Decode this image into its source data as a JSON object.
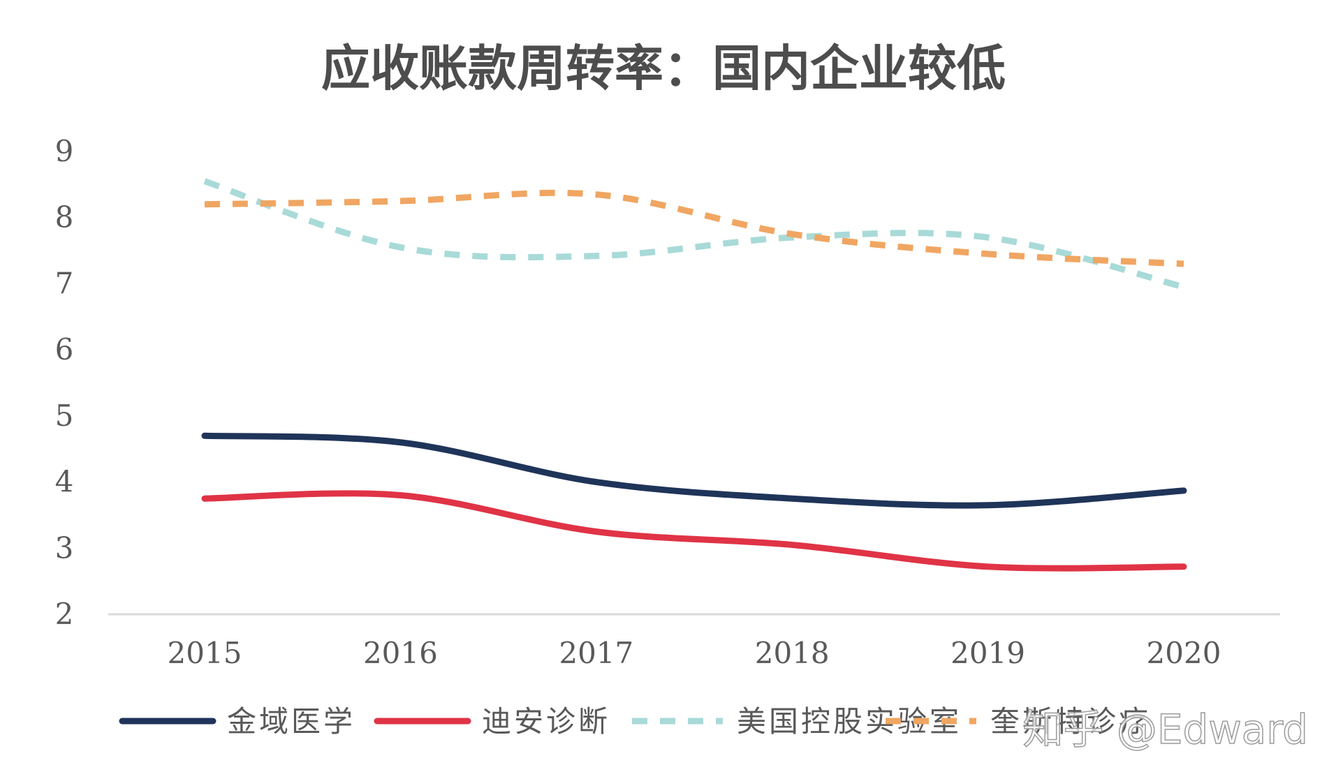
{
  "chart_data": {
    "type": "line",
    "title": "应收账款周转率：国内企业较低",
    "xlabel": "",
    "ylabel": "",
    "categories": [
      "2015",
      "2016",
      "2017",
      "2018",
      "2019",
      "2020"
    ],
    "ylim": [
      2,
      9
    ],
    "yticks": [
      "2",
      "3",
      "4",
      "5",
      "6",
      "7",
      "8",
      "9"
    ],
    "grid": false,
    "legend_position": "bottom",
    "smooth": true,
    "series": [
      {
        "name": "金域医学",
        "values": [
          4.7,
          4.6,
          4.0,
          3.75,
          3.65,
          3.87
        ],
        "color": "#1f3459",
        "dashed": false
      },
      {
        "name": "迪安诊断",
        "values": [
          3.75,
          3.8,
          3.25,
          3.05,
          2.72,
          2.72
        ],
        "color": "#e03346",
        "dashed": false
      },
      {
        "name": "美国控股实验室",
        "values": [
          8.55,
          7.55,
          7.42,
          7.7,
          7.7,
          6.95
        ],
        "color": "#a8dad8",
        "dashed": true
      },
      {
        "name": "奎斯特诊疗",
        "values": [
          8.2,
          8.25,
          8.35,
          7.75,
          7.45,
          7.3
        ],
        "color": "#f0a662",
        "dashed": true
      }
    ]
  },
  "watermark": "知乎 @Edward"
}
